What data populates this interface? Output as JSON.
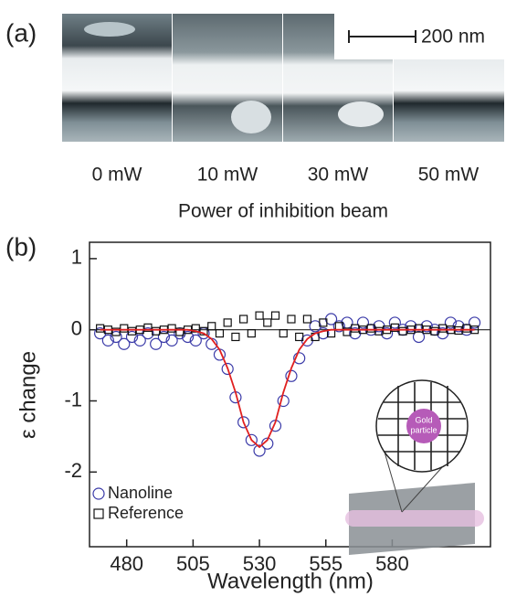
{
  "panel_a": {
    "label": "(a)",
    "scale_bar": "200 nm",
    "powers": [
      "0 mW",
      "10 mW",
      "30 mW",
      "50 mW"
    ],
    "axis_title": "Power of inhibition beam"
  },
  "chart_data": {
    "type": "scatter",
    "panel_label": "(b)",
    "xlabel": "Wavelength (nm)",
    "ylabel": "ε change",
    "x": [
      470,
      473,
      476,
      479,
      482,
      485,
      488,
      491,
      494,
      497,
      500,
      503,
      506,
      509,
      512,
      515,
      518,
      521,
      524,
      527,
      530,
      533,
      536,
      539,
      542,
      545,
      548,
      551,
      554,
      557,
      560,
      563,
      566,
      569,
      572,
      575,
      578,
      581,
      584,
      587,
      590,
      593,
      596,
      599,
      602,
      605,
      608,
      611
    ],
    "series": [
      {
        "name": "Nanoline",
        "color": "#3a3aa8",
        "marker": "circle",
        "values": [
          -0.05,
          -0.15,
          -0.1,
          -0.2,
          -0.1,
          -0.15,
          -0.05,
          -0.2,
          -0.1,
          -0.15,
          -0.05,
          -0.1,
          -0.15,
          -0.05,
          -0.2,
          -0.35,
          -0.55,
          -0.95,
          -1.3,
          -1.55,
          -1.7,
          -1.6,
          -1.35,
          -1.0,
          -0.65,
          -0.4,
          -0.15,
          0.05,
          -0.05,
          0.15,
          0.05,
          0.1,
          -0.05,
          0.1,
          0.0,
          0.05,
          -0.05,
          0.1,
          0.0,
          0.05,
          -0.1,
          0.05,
          0.0,
          -0.05,
          0.1,
          0.05,
          0.0,
          0.1
        ]
      },
      {
        "name": "Reference",
        "color": "#111111",
        "marker": "square",
        "values": [
          0.02,
          0.0,
          -0.03,
          0.02,
          -0.02,
          0.0,
          0.03,
          -0.02,
          0.0,
          0.02,
          -0.03,
          0.0,
          0.02,
          -0.02,
          0.05,
          -0.05,
          0.1,
          -0.1,
          0.15,
          -0.05,
          0.2,
          0.1,
          0.2,
          -0.05,
          0.15,
          -0.1,
          0.15,
          -0.1,
          0.1,
          -0.05,
          0.05,
          -0.03,
          0.02,
          0.0,
          0.02,
          -0.02,
          0.0,
          0.03,
          -0.02,
          0.0,
          0.02,
          0.0,
          -0.02,
          0.02,
          0.0,
          -0.01,
          0.02,
          0.0
        ]
      },
      {
        "color": "#e02020",
        "marker": "line",
        "values": [
          0,
          0,
          0,
          0,
          0,
          0,
          0,
          0,
          0,
          0,
          0,
          0,
          -0.02,
          -0.05,
          -0.13,
          -0.28,
          -0.54,
          -0.88,
          -1.3,
          -1.55,
          -1.65,
          -1.55,
          -1.3,
          -0.88,
          -0.54,
          -0.28,
          -0.13,
          -0.05,
          -0.02,
          0,
          0,
          0,
          0,
          0,
          0,
          0,
          0,
          0,
          0,
          0,
          0,
          0,
          0,
          0,
          0,
          0,
          0,
          0
        ]
      }
    ],
    "xlim": [
      466,
      617
    ],
    "ylim": [
      -3.05,
      1.23
    ],
    "xticks": [
      480,
      505,
      530,
      555,
      580
    ],
    "yticks": [
      1,
      0,
      -1,
      -2
    ],
    "zero_line": true,
    "legend": "lower left",
    "inset_labels": [
      "Gold",
      "particle"
    ]
  }
}
